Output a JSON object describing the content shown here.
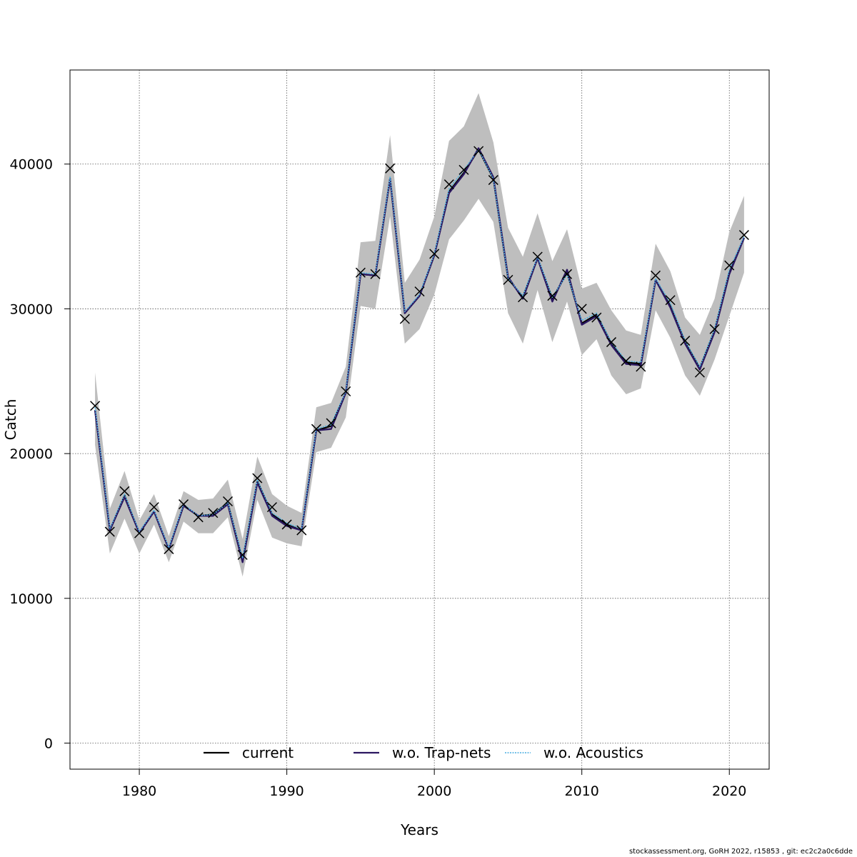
{
  "footer": "stockassessment.org, GoRH  2022, r15853 , git: ec2c2a0c6dde",
  "chart_data": {
    "type": "line",
    "xlabel": "Years",
    "ylabel": "Catch",
    "xlim": [
      1975.3,
      2022.7
    ],
    "ylim": [
      -1800,
      46500
    ],
    "xticks": [
      1980,
      1990,
      2000,
      2010,
      2020
    ],
    "yticks": [
      0,
      10000,
      20000,
      30000,
      40000
    ],
    "grid": true,
    "legend_position": "bottom",
    "x": [
      1977,
      1978,
      1979,
      1980,
      1981,
      1982,
      1983,
      1984,
      1985,
      1986,
      1987,
      1988,
      1989,
      1990,
      1991,
      1992,
      1993,
      1994,
      1995,
      1996,
      1997,
      1998,
      1999,
      2000,
      2001,
      2002,
      2003,
      2004,
      2005,
      2006,
      2007,
      2008,
      2009,
      2010,
      2011,
      2012,
      2013,
      2014,
      2015,
      2016,
      2017,
      2018,
      2019,
      2020,
      2021
    ],
    "band": {
      "color": "#bebebe",
      "upper": [
        25600,
        16200,
        18800,
        15400,
        17200,
        14300,
        17400,
        16800,
        16900,
        18200,
        14100,
        19800,
        17200,
        16400,
        15900,
        23200,
        23500,
        26000,
        34600,
        34700,
        42000,
        31800,
        33400,
        36400,
        41600,
        42600,
        44900,
        41500,
        35600,
        33600,
        36600,
        33300,
        35500,
        31400,
        31800,
        29900,
        28500,
        28200,
        34500,
        32600,
        29400,
        28200,
        30700,
        35300,
        37800
      ],
      "lower": [
        20600,
        13100,
        15500,
        13100,
        15100,
        12500,
        15300,
        14500,
        14500,
        15600,
        11500,
        16800,
        14200,
        13800,
        13600,
        20100,
        20400,
        22500,
        30200,
        30000,
        36400,
        27600,
        28600,
        31000,
        34800,
        36100,
        37600,
        36000,
        29700,
        27600,
        31300,
        27700,
        30500,
        26800,
        27900,
        25400,
        24100,
        24500,
        29900,
        28000,
        25400,
        24000,
        26500,
        29500,
        32500
      ]
    },
    "series": [
      {
        "name": "current",
        "color": "#000000",
        "style": "solid",
        "values": [
          23000,
          14700,
          17100,
          14500,
          16000,
          13400,
          16400,
          15700,
          15800,
          16600,
          12600,
          18100,
          15800,
          15100,
          14700,
          21600,
          21900,
          24200,
          32400,
          32300,
          39000,
          29700,
          30900,
          33700,
          38100,
          39400,
          41000,
          39000,
          32100,
          30800,
          33500,
          30700,
          32500,
          29000,
          29600,
          27600,
          26300,
          26200,
          32000,
          30200,
          27700,
          25900,
          28500,
          32500,
          34900
        ]
      },
      {
        "name": "w.o. Trap-nets",
        "color": "#2b1760",
        "style": "solid",
        "values": [
          23000,
          14700,
          17000,
          14500,
          16000,
          13400,
          16400,
          15700,
          15700,
          16500,
          12500,
          18000,
          15700,
          15000,
          14700,
          21600,
          21700,
          24200,
          32400,
          32300,
          39000,
          29700,
          30900,
          33700,
          38000,
          39300,
          41100,
          39100,
          32200,
          30700,
          33500,
          30500,
          32700,
          28900,
          29500,
          27500,
          26200,
          26100,
          32000,
          30100,
          27600,
          25800,
          28400,
          32400,
          34900
        ]
      },
      {
        "name": "w.o. Acoustics",
        "color": "#4aaee0",
        "style": "dotted",
        "values": [
          23200,
          14800,
          17200,
          14600,
          16100,
          13500,
          16500,
          15700,
          15800,
          16600,
          12800,
          18200,
          15900,
          15200,
          14800,
          21700,
          22000,
          24300,
          32500,
          32400,
          39100,
          29800,
          31000,
          33800,
          38300,
          39600,
          41000,
          39000,
          32100,
          30900,
          33600,
          30800,
          32400,
          29200,
          29700,
          27700,
          26400,
          26300,
          32100,
          30400,
          27800,
          26000,
          28600,
          32700,
          35000
        ]
      }
    ],
    "observed": {
      "marker": "x",
      "values": [
        23300,
        14600,
        17400,
        14500,
        16300,
        13400,
        16500,
        15600,
        15900,
        16700,
        13000,
        18300,
        16300,
        15100,
        14700,
        21700,
        22100,
        24300,
        32500,
        32400,
        39700,
        29300,
        31200,
        33800,
        38600,
        39600,
        40900,
        38900,
        32000,
        30800,
        33600,
        30900,
        32400,
        30000,
        29400,
        27700,
        26400,
        26000,
        32300,
        30600,
        27800,
        25600,
        28600,
        33000,
        35100
      ]
    }
  }
}
